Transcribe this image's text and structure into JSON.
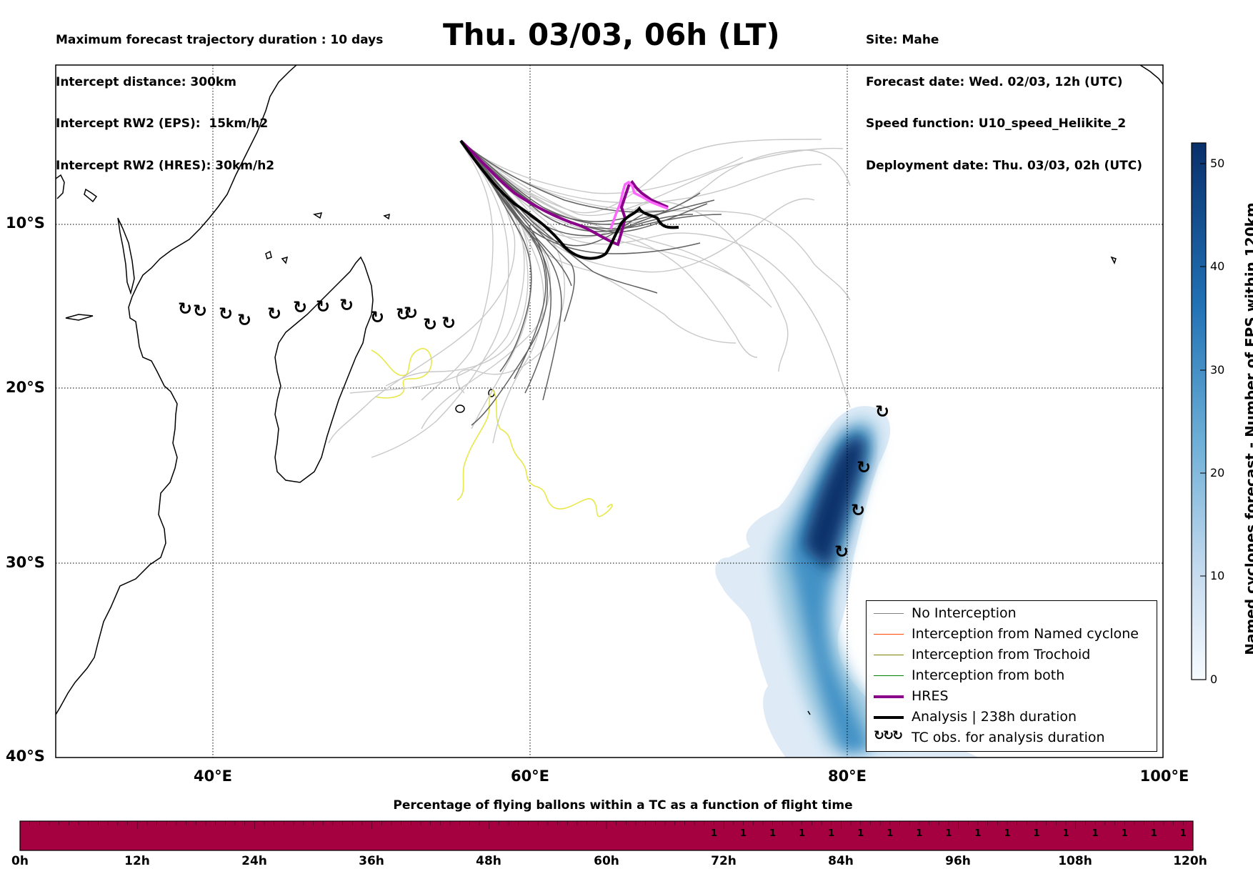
{
  "header": {
    "left_lines": [
      "Maximum forecast trajectory duration : 10 days",
      "Intercept distance: 300km",
      "Intercept RW2 (EPS):  15km/h2",
      "Intercept RW2 (HRES): 30km/h2"
    ],
    "title": "Thu. 03/03, 06h (LT)",
    "right_lines": [
      "Site: Mahe",
      "Forecast date: Wed. 02/03, 12h (UTC)",
      "Speed function: U10_speed_Helikite_2",
      "Deployment date: Thu. 03/03, 02h (UTC)"
    ]
  },
  "map": {
    "lat_labels": [
      "10°S",
      "20°S",
      "30°S",
      "40°S"
    ],
    "lon_labels": [
      "40°E",
      "60°E",
      "80°E",
      "100°E"
    ],
    "lon_range": [
      30,
      100
    ],
    "lat_range": [
      -40,
      -0.7
    ],
    "colors": {
      "no_interception": "#808080",
      "named_cyclone": "#ff4500",
      "trochoid": "#808000",
      "both": "#008000",
      "hres": "#8b008b",
      "analysis": "#000000",
      "yellow_track": "#e8e84a",
      "pink_track": "#ff66ff",
      "density_low": "#deebf7",
      "density_high": "#08306b"
    }
  },
  "colorbar": {
    "title": "Named cyclones forecast - Number of EPS within 120km",
    "ticks": [
      "0",
      "10",
      "20",
      "30",
      "40",
      "50"
    ],
    "max": 52
  },
  "legend": {
    "items": [
      {
        "label": "No Interception",
        "color": "#808080",
        "kind": "thin"
      },
      {
        "label": "Interception from Named cyclone",
        "color": "#ff4500",
        "kind": "thin"
      },
      {
        "label": "Interception from Trochoid",
        "color": "#808000",
        "kind": "thin"
      },
      {
        "label": "Interception from both",
        "color": "#008000",
        "kind": "thin"
      },
      {
        "label": "HRES",
        "color": "#8b008b",
        "kind": "thick"
      },
      {
        "label": "Analysis | 238h duration",
        "color": "#000000",
        "kind": "thick"
      },
      {
        "label": "TC obs. for analysis duration",
        "color": "#000000",
        "kind": "symbol"
      }
    ]
  },
  "timebar": {
    "title": "Percentage of flying ballons within a TC as a function of flight time",
    "labels": [
      "0h",
      "12h",
      "24h",
      "36h",
      "48h",
      "60h",
      "72h",
      "84h",
      "96h",
      "108h",
      "120h"
    ],
    "bar_color": "#a50040",
    "cell_values_from_70h": [
      "1",
      "1",
      "1",
      "1",
      "1",
      "1",
      "1",
      "1",
      "1",
      "1",
      "1",
      "1",
      "1",
      "1",
      "1",
      "1",
      "1"
    ]
  }
}
